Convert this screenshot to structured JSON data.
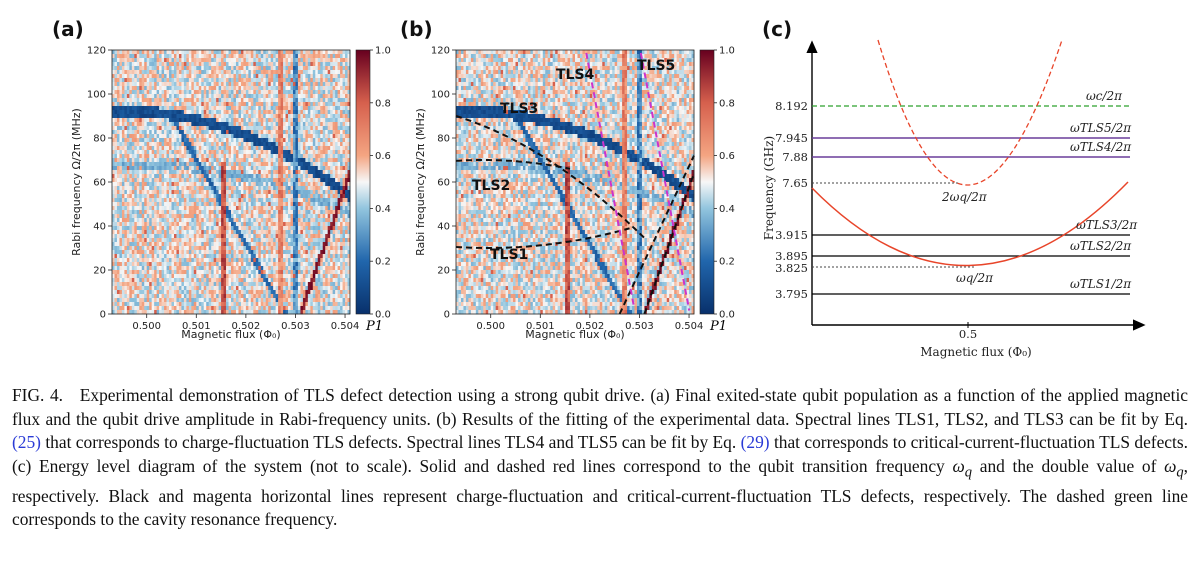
{
  "panels": {
    "a": {
      "letter": "(a)"
    },
    "b": {
      "letter": "(b)"
    },
    "c": {
      "letter": "(c)"
    }
  },
  "tls_labels": {
    "tls1": "TLS1",
    "tls2": "TLS2",
    "tls3": "TLS3",
    "tls4": "TLS4",
    "tls5": "TLS5"
  },
  "panel_c": {
    "ylabel": "Frequency (GHz)",
    "xlabel": "Magnetic flux (Φ₀)",
    "xtick": "0.5",
    "yticks": [
      "8.192",
      "7.945",
      "7.88",
      "7.65",
      "3.915",
      "3.895",
      "3.825",
      "3.795"
    ],
    "labels": {
      "wc": "ωc/2π",
      "tls5": "ωTLS5/2π",
      "tls4": "ωTLS4/2π",
      "two_wq": "2ωq/2π",
      "tls3": "ωTLS3/2π",
      "tls2": "ωTLS2/2π",
      "wq": "ωq/2π",
      "tls1": "ωTLS1/2π"
    },
    "colors": {
      "wc": "#2ca02c",
      "qubit": "#e8452a",
      "charge_tls": "#000000",
      "cc_tls": "#6a3d9a"
    }
  },
  "chart_data": [
    {
      "type": "heatmap",
      "panel": "(a)",
      "xlabel": "Magnetic flux (Φ₀)",
      "ylabel": "Rabi frequency Ω/2π (MHz)",
      "xlim": [
        0.4993,
        0.5041
      ],
      "ylim": [
        0,
        120
      ],
      "xticks": [
        "0.500",
        "0.501",
        "0.502",
        "0.503",
        "0.504"
      ],
      "yticks": [
        "0",
        "20",
        "40",
        "60",
        "80",
        "100",
        "120"
      ],
      "colorbar": {
        "label": "P1",
        "range": [
          0.0,
          1.0
        ],
        "ticks": [
          "0.0",
          "0.2",
          "0.4",
          "0.6",
          "0.8",
          "1.0"
        ],
        "colors": [
          "#08306b",
          "#f7f7f7",
          "#67001f"
        ]
      }
    },
    {
      "type": "heatmap",
      "panel": "(b)",
      "xlabel": "Magnetic flux (Φ₀)",
      "ylabel": "Rabi frequency Ω/2π (MHz)",
      "xlim": [
        0.4993,
        0.5041
      ],
      "ylim": [
        0,
        120
      ],
      "xticks": [
        "0.500",
        "0.501",
        "0.502",
        "0.503",
        "0.504"
      ],
      "yticks": [
        "0",
        "20",
        "40",
        "60",
        "80",
        "100",
        "120"
      ],
      "colorbar": {
        "label": "P1",
        "range": [
          0.0,
          1.0
        ],
        "ticks": [
          "0.0",
          "0.2",
          "0.4",
          "0.6",
          "0.8",
          "1.0"
        ],
        "colors": [
          "#08306b",
          "#f7f7f7",
          "#67001f"
        ]
      },
      "fit_curves": [
        {
          "name": "TLS1",
          "color": "#000000",
          "style": "dashed"
        },
        {
          "name": "TLS2",
          "color": "#000000",
          "style": "dashed"
        },
        {
          "name": "TLS3",
          "color": "#000000",
          "style": "dashed"
        },
        {
          "name": "TLS4",
          "color": "#cc33cc",
          "style": "dashed"
        },
        {
          "name": "TLS5",
          "color": "#cc33cc",
          "style": "dashed"
        }
      ]
    }
  ],
  "caption": {
    "fig": "FIG. 4.",
    "p1": "Experimental demonstration of TLS defect detection using a strong qubit drive. (a) Final exited-state qubit population as a function of the applied magnetic flux and the qubit drive amplitude in Rabi-frequency units. (b) Results of the fitting of the experimental data. Spectral lines TLS1, TLS2, and TLS3 can be fit by Eq.",
    "ref1": "(25)",
    "p2": "that corresponds to charge-fluctuation TLS defects. Spectral lines TLS4 and TLS5 can be fit by Eq.",
    "ref2": "(29)",
    "p3": "that corresponds to critical-current-fluctuation TLS defects. (c) Energy level diagram of the system (not to scale). Solid and dashed red lines correspond to the qubit transition frequency",
    "wq1": "ω",
    "sub1": "q",
    "p4": "and the double value of",
    "wq2": "ω",
    "sub2": "q",
    "p5": ", respectively. Black and magenta horizontal lines represent charge-fluctuation and critical-current-fluctuation TLS defects, respectively. The dashed green line corresponds to the cavity resonance frequency."
  }
}
